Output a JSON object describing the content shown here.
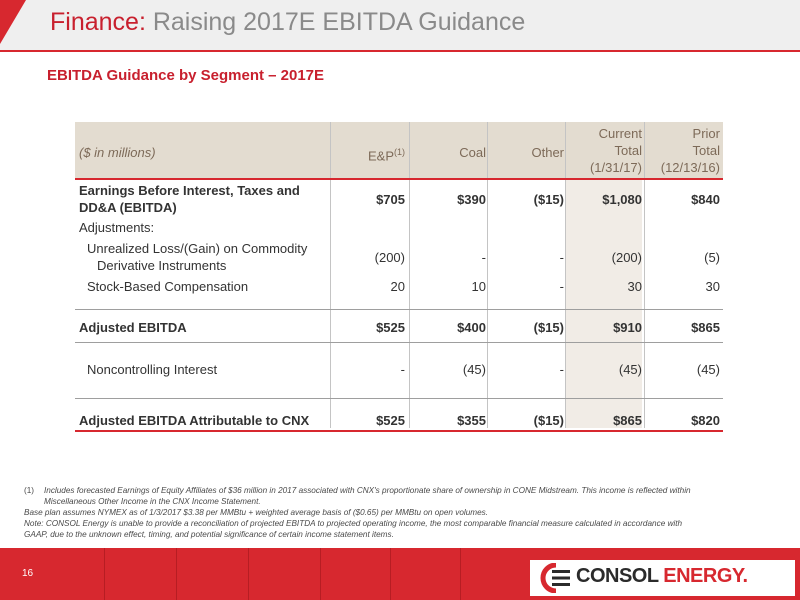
{
  "header": {
    "title_accent": "Finance:",
    "title_rest": " Raising 2017E EBITDA Guidance"
  },
  "subtitle": "EBITDA Guidance by Segment – 2017E",
  "table": {
    "headers": {
      "label": "($ in millions)",
      "ep": "E&P",
      "ep_sup": "(1)",
      "coal": "Coal",
      "other": "Other",
      "current_line1": "Current",
      "current_line2": "Total",
      "current_line3": "(1/31/17)",
      "prior_line1": "Prior",
      "prior_line2": "Total",
      "prior_line3": "(12/13/16)"
    },
    "rows": [
      {
        "label_line1": "Earnings Before Interest, Taxes and",
        "label_line2": "DD&A (EBITDA)",
        "values": [
          "$705",
          "$390",
          "($15)",
          "$1,080",
          "$840"
        ]
      },
      {
        "label": "Adjustments:"
      },
      {
        "label_line1": "Unrealized Loss/(Gain) on Commodity",
        "label_line2": "Derivative Instruments",
        "values": [
          "(200)",
          "-",
          "-",
          "(200)",
          "(5)"
        ]
      },
      {
        "label": "Stock-Based Compensation",
        "values": [
          "20",
          "10",
          "-",
          "30",
          "30"
        ]
      },
      {
        "label": "Adjusted EBITDA",
        "values": [
          "$525",
          "$400",
          "($15)",
          "$910",
          "$865"
        ]
      },
      {
        "label": "Noncontrolling Interest",
        "values": [
          "-",
          "(45)",
          "-",
          "(45)",
          "(45)"
        ]
      },
      {
        "label": "Adjusted EBITDA Attributable to CNX",
        "values": [
          "$525",
          "$355",
          "($15)",
          "$865",
          "$820"
        ]
      }
    ]
  },
  "notes": {
    "footnote_num": "(1)",
    "footnote_line1": "Includes forecasted Earnings of Equity Affiliates of $36 million in 2017 associated with CNX's proportionate share of ownership in CONE Midstream. This income is reflected within",
    "footnote_line2": "Miscellaneous Other Income in the CNX Income Statement.",
    "base_plan": "Base plan assumes NYMEX as of 1/3/2017 $3.38 per MMBtu + weighted average basis of ($0.65) per MMBtu on open volumes.",
    "note_line1": "Note: CONSOL Energy is unable to provide a reconciliation of projected EBITDA to projected operating income, the most comparable financial measure calculated in accordance with",
    "note_line2": "GAAP, due to the unknown effect, timing, and potential significance of certain income statement items."
  },
  "footer": {
    "page_number": "16",
    "logo_word1": "CONSOL",
    "logo_word2": "ENERGY",
    "logo_mark": "."
  },
  "colors": {
    "brand_red": "#d7282f",
    "header_band": "#e3dcd0",
    "highlight_column": "#f1ece6"
  }
}
